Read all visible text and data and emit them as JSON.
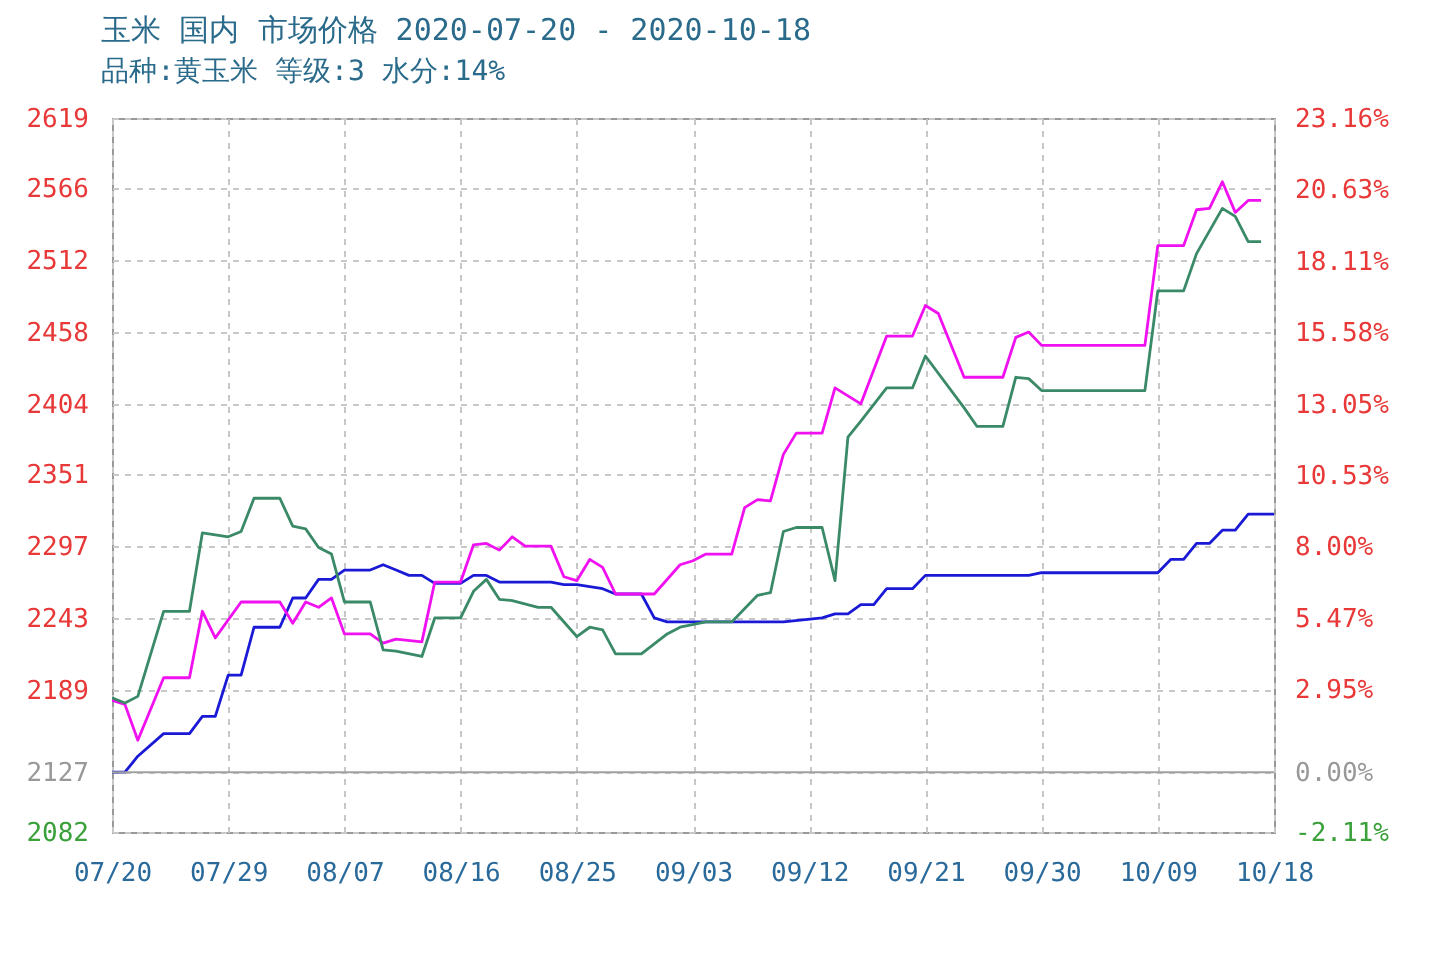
{
  "chart_data": {
    "type": "line",
    "title": "玉米 国内 市场价格 2020-07-20 - 2020-10-18",
    "subtitle": "品种:黄玉米 等级:3 水分:14%",
    "xlim": [
      "2020-07-20",
      "2020-10-18"
    ],
    "xticks": [
      {
        "value": "2020-07-20",
        "label": "07/20"
      },
      {
        "value": "2020-07-29",
        "label": "07/29"
      },
      {
        "value": "2020-08-07",
        "label": "08/07"
      },
      {
        "value": "2020-08-16",
        "label": "08/16"
      },
      {
        "value": "2020-08-25",
        "label": "08/25"
      },
      {
        "value": "2020-09-03",
        "label": "09/03"
      },
      {
        "value": "2020-09-12",
        "label": "09/12"
      },
      {
        "value": "2020-09-21",
        "label": "09/21"
      },
      {
        "value": "2020-09-30",
        "label": "09/30"
      },
      {
        "value": "2020-10-09",
        "label": "10/09"
      },
      {
        "value": "2020-10-18",
        "label": "10/18"
      }
    ],
    "ylim": [
      2082,
      2619
    ],
    "yticks": [
      2082,
      2127,
      2189,
      2243,
      2297,
      2351,
      2404,
      2458,
      2512,
      2566,
      2619
    ],
    "y2lim": [
      -2.11,
      23.16
    ],
    "y2ticks": [
      {
        "value": -2.11,
        "label": "-2.11%"
      },
      {
        "value": 0,
        "label": "0.00%"
      },
      {
        "value": 2.95,
        "label": "2.95%"
      },
      {
        "value": 5.47,
        "label": "5.47%"
      },
      {
        "value": 8,
        "label": "8.00%"
      },
      {
        "value": 10.53,
        "label": "10.53%"
      },
      {
        "value": 13.05,
        "label": "13.05%"
      },
      {
        "value": 15.58,
        "label": "15.58%"
      },
      {
        "value": 18.11,
        "label": "18.11%"
      },
      {
        "value": 20.63,
        "label": "20.63%"
      },
      {
        "value": 23.16,
        "label": "23.16%"
      }
    ],
    "grid": true,
    "ref_lines": [
      {
        "axis": "y",
        "value": 2127,
        "color": "#a0a0a0"
      }
    ],
    "series": [
      {
        "color": "#1a1ad6",
        "x": [
          "2020-07-20",
          "2020-07-21",
          "2020-07-22",
          "2020-07-24",
          "2020-07-26",
          "2020-07-27",
          "2020-07-28",
          "2020-07-29",
          "2020-07-30",
          "2020-07-31",
          "2020-08-02",
          "2020-08-03",
          "2020-08-04",
          "2020-08-05",
          "2020-08-06",
          "2020-08-07",
          "2020-08-09",
          "2020-08-10",
          "2020-08-11",
          "2020-08-12",
          "2020-08-13",
          "2020-08-14",
          "2020-08-16",
          "2020-08-17",
          "2020-08-18",
          "2020-08-19",
          "2020-08-23",
          "2020-08-24",
          "2020-08-25",
          "2020-08-27",
          "2020-08-28",
          "2020-08-30",
          "2020-08-31",
          "2020-09-01",
          "2020-09-10",
          "2020-09-13",
          "2020-09-14",
          "2020-09-15",
          "2020-09-16",
          "2020-09-17",
          "2020-09-18",
          "2020-09-20",
          "2020-09-21",
          "2020-09-29",
          "2020-09-30",
          "2020-10-09",
          "2020-10-10",
          "2020-10-11",
          "2020-10-12",
          "2020-10-13",
          "2020-10-14",
          "2020-10-15",
          "2020-10-16",
          "2020-10-18"
        ],
        "values": [
          2127,
          2127,
          2139,
          2156,
          2156,
          2169,
          2169,
          2200,
          2200,
          2236,
          2236,
          2258,
          2258,
          2272,
          2272,
          2279,
          2279,
          2283,
          2279,
          2275,
          2275,
          2269,
          2269,
          2275,
          2275,
          2270,
          2270,
          2268,
          2268,
          2265,
          2261,
          2261,
          2243,
          2240,
          2240,
          2243,
          2246,
          2246,
          2253,
          2253,
          2265,
          2265,
          2275,
          2275,
          2277,
          2277,
          2287,
          2287,
          2299,
          2299,
          2309,
          2309,
          2321,
          2321
        ]
      },
      {
        "color": "#f010f0",
        "x": [
          "2020-07-20",
          "2020-07-21",
          "2020-07-22",
          "2020-07-24",
          "2020-07-26",
          "2020-07-27",
          "2020-07-28",
          "2020-07-30",
          "2020-08-02",
          "2020-08-03",
          "2020-08-04",
          "2020-08-05",
          "2020-08-06",
          "2020-08-07",
          "2020-08-09",
          "2020-08-10",
          "2020-08-11",
          "2020-08-13",
          "2020-08-14",
          "2020-08-16",
          "2020-08-17",
          "2020-08-18",
          "2020-08-19",
          "2020-08-20",
          "2020-08-21",
          "2020-08-23",
          "2020-08-24",
          "2020-08-25",
          "2020-08-26",
          "2020-08-27",
          "2020-08-28",
          "2020-08-31",
          "2020-09-02",
          "2020-09-03",
          "2020-09-04",
          "2020-09-06",
          "2020-09-07",
          "2020-09-08",
          "2020-09-09",
          "2020-09-10",
          "2020-09-11",
          "2020-09-13",
          "2020-09-14",
          "2020-09-16",
          "2020-09-18",
          "2020-09-20",
          "2020-09-21",
          "2020-09-22",
          "2020-09-24",
          "2020-09-27",
          "2020-09-28",
          "2020-09-29",
          "2020-09-30",
          "2020-10-08",
          "2020-10-09",
          "2020-10-11",
          "2020-10-12",
          "2020-10-13",
          "2020-10-14",
          "2020-10-15",
          "2020-10-16",
          "2020-10-17"
        ],
        "values": [
          2181,
          2178,
          2151,
          2198,
          2198,
          2248,
          2228,
          2255,
          2255,
          2239,
          2255,
          2251,
          2258,
          2231,
          2231,
          2224,
          2227,
          2225,
          2270,
          2270,
          2298,
          2299,
          2294,
          2304,
          2297,
          2297,
          2274,
          2271,
          2287,
          2281,
          2261,
          2261,
          2283,
          2286,
          2291,
          2291,
          2326,
          2332,
          2331,
          2366,
          2382,
          2382,
          2416,
          2404,
          2455,
          2455,
          2478,
          2472,
          2424,
          2424,
          2454,
          2458,
          2448,
          2448,
          2523,
          2523,
          2550,
          2551,
          2571,
          2548,
          2557,
          2557
        ]
      },
      {
        "color": "#3a8a68",
        "x": [
          "2020-07-20",
          "2020-07-21",
          "2020-07-22",
          "2020-07-24",
          "2020-07-26",
          "2020-07-27",
          "2020-07-29",
          "2020-07-30",
          "2020-07-31",
          "2020-08-02",
          "2020-08-03",
          "2020-08-04",
          "2020-08-05",
          "2020-08-06",
          "2020-08-07",
          "2020-08-09",
          "2020-08-10",
          "2020-08-11",
          "2020-08-13",
          "2020-08-14",
          "2020-08-16",
          "2020-08-17",
          "2020-08-18",
          "2020-08-19",
          "2020-08-20",
          "2020-08-22",
          "2020-08-23",
          "2020-08-25",
          "2020-08-26",
          "2020-08-27",
          "2020-08-28",
          "2020-08-30",
          "2020-09-01",
          "2020-09-02",
          "2020-09-04",
          "2020-09-06",
          "2020-09-08",
          "2020-09-09",
          "2020-09-10",
          "2020-09-11",
          "2020-09-13",
          "2020-09-14",
          "2020-09-15",
          "2020-09-16",
          "2020-09-18",
          "2020-09-20",
          "2020-09-21",
          "2020-09-24",
          "2020-09-25",
          "2020-09-27",
          "2020-09-28",
          "2020-09-29",
          "2020-09-30",
          "2020-10-08",
          "2020-10-09",
          "2020-10-11",
          "2020-10-12",
          "2020-10-14",
          "2020-10-15",
          "2020-10-16",
          "2020-10-17"
        ],
        "values": [
          2183,
          2179,
          2184,
          2248,
          2248,
          2307,
          2304,
          2308,
          2333,
          2333,
          2312,
          2310,
          2296,
          2291,
          2255,
          2255,
          2219,
          2218,
          2214,
          2243,
          2243,
          2263,
          2272,
          2257,
          2256,
          2251,
          2251,
          2229,
          2236,
          2234,
          2216,
          2216,
          2231,
          2236,
          2240,
          2240,
          2260,
          2262,
          2308,
          2311,
          2311,
          2271,
          2379,
          2391,
          2416,
          2416,
          2440,
          2401,
          2387,
          2387,
          2424,
          2423,
          2414,
          2414,
          2489,
          2489,
          2517,
          2551,
          2545,
          2526,
          2526
        ]
      }
    ]
  }
}
